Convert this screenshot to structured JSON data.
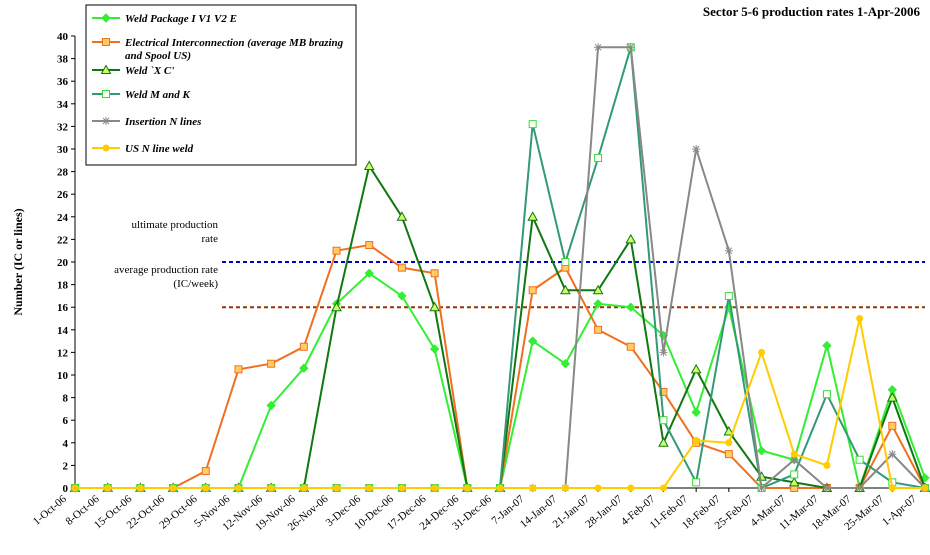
{
  "chart_data": {
    "type": "line",
    "title": "Sector 5-6 production rates 1-Apr-2006",
    "y_label": "Number (IC or lines)",
    "categories": [
      "1-Oct-06",
      "8-Oct-06",
      "15-Oct-06",
      "22-Oct-06",
      "29-Oct-06",
      "5-Nov-06",
      "12-Nov-06",
      "19-Nov-06",
      "26-Nov-06",
      "3-Dec-06",
      "10-Dec-06",
      "17-Dec-06",
      "24-Dec-06",
      "31-Dec-06",
      "7-Jan-07",
      "14-Jan-07",
      "21-Jan-07",
      "28-Jan-07",
      "4-Feb-07",
      "11-Feb-07",
      "18-Feb-07",
      "25-Feb-07",
      "4-Mar-07",
      "11-Mar-07",
      "18-Mar-07",
      "25-Mar-07",
      "1-Apr-07"
    ],
    "series": [
      {
        "name": "Weld Package I V1 V2  E",
        "color": "#33ee33",
        "marker": "diamond",
        "values": [
          0,
          0,
          0,
          0,
          0,
          0,
          7.3,
          10.6,
          16.3,
          19,
          17,
          12.3,
          0,
          0,
          13,
          11,
          16.3,
          16,
          13.5,
          6.7,
          16,
          3.3,
          2.5,
          12.6,
          0,
          8.7,
          0.9
        ]
      },
      {
        "name": "Electrical Interconnection (average MB brazing and Spool US)",
        "color": "#f07020",
        "marker": "square",
        "values": [
          0,
          0,
          0,
          0,
          1.5,
          10.5,
          11,
          12.5,
          21,
          21.5,
          19.5,
          19,
          0,
          0,
          17.5,
          19.5,
          14,
          12.5,
          8.5,
          4,
          3,
          0,
          0,
          0,
          0,
          5.5,
          0
        ]
      },
      {
        "name": "Weld `X C'",
        "color": "#117711",
        "marker": "triangle",
        "values": [
          0,
          0,
          0,
          0,
          0,
          0,
          0,
          0,
          16,
          28.5,
          24,
          16,
          0,
          0,
          24,
          17.5,
          17.5,
          22,
          4,
          10.5,
          5,
          1,
          0.5,
          0,
          0,
          8,
          0
        ]
      },
      {
        "name": "Weld M and K",
        "color": "#339977",
        "marker": "hollow-square",
        "values": [
          0,
          0,
          0,
          0,
          0,
          0,
          0,
          0,
          0,
          0,
          0,
          0,
          0,
          0,
          32.2,
          20,
          29.2,
          39,
          6,
          0.5,
          17,
          0,
          1.2,
          8.3,
          2.5,
          0.5,
          0
        ]
      },
      {
        "name": "Insertion N lines",
        "color": "#888888",
        "marker": "star",
        "values": [
          0,
          0,
          0,
          0,
          0,
          0,
          0,
          0,
          0,
          0,
          0,
          0,
          0,
          0,
          0,
          0,
          39,
          39,
          12,
          30,
          21,
          0,
          2.5,
          0,
          0,
          3,
          0
        ]
      },
      {
        "name": "US N line weld",
        "color": "#ffcc00",
        "marker": "circle",
        "values": [
          0,
          0,
          0,
          0,
          0,
          0,
          0,
          0,
          0,
          0,
          0,
          0,
          0,
          0,
          0,
          0,
          0,
          0,
          0,
          4.2,
          4,
          12,
          3,
          2,
          15,
          0,
          0
        ]
      }
    ],
    "reference_lines": [
      {
        "label": "ultimate production rate",
        "value": 20,
        "color": "#0000cc"
      },
      {
        "label": "average production rate (IC/week)",
        "value": 16,
        "color": "#993300"
      }
    ],
    "ylim": [
      0,
      40
    ],
    "yticks": [
      0,
      2,
      4,
      6,
      8,
      10,
      12,
      14,
      16,
      18,
      20,
      22,
      24,
      26,
      28,
      30,
      32,
      34,
      36,
      38,
      40
    ],
    "grid": false
  }
}
